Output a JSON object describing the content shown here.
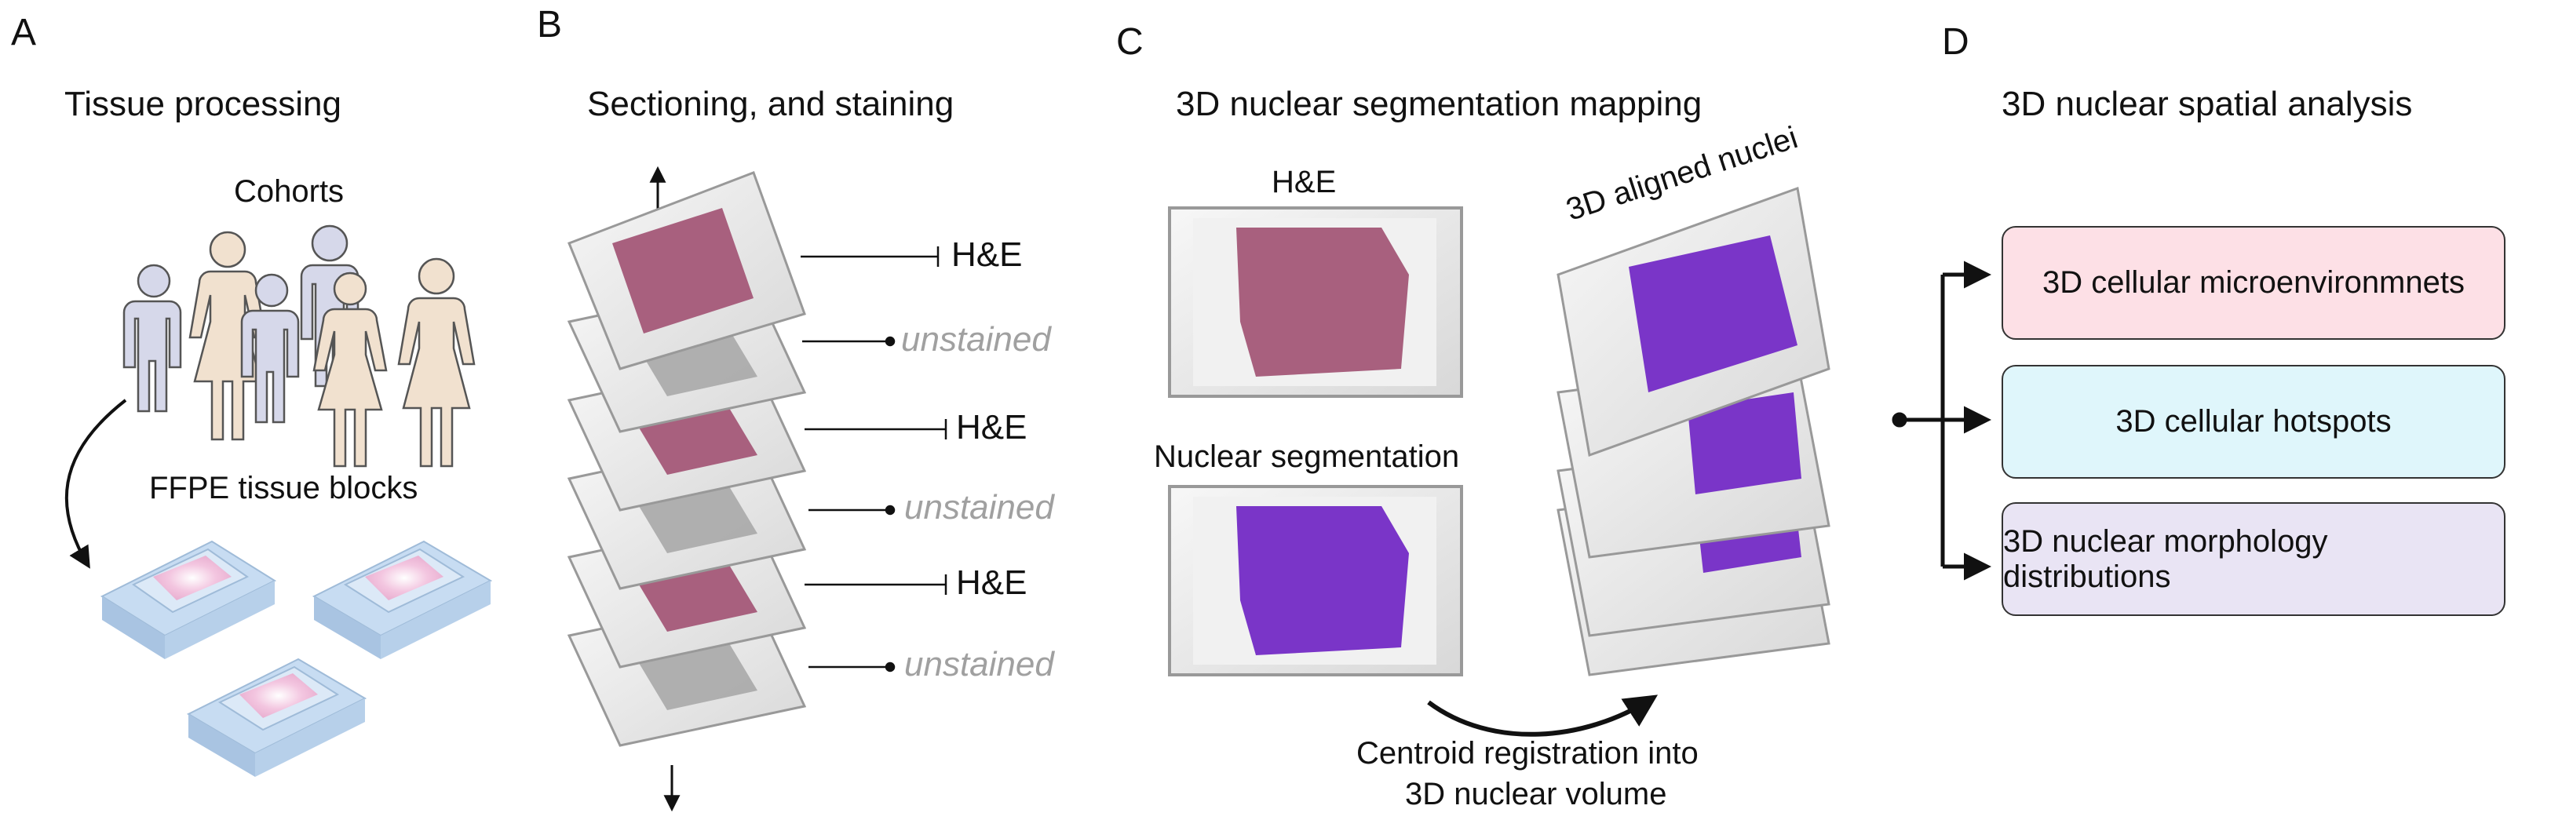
{
  "panels": {
    "a": {
      "letter": "A",
      "title": "Tissue processing",
      "cohorts_label": "Cohorts",
      "blocks_label": "FFPE tissue blocks"
    },
    "b": {
      "letter": "B",
      "title": "Sectioning, and staining",
      "stains": [
        "H&E",
        "unstained",
        "H&E",
        "unstained",
        "H&E",
        "unstained"
      ]
    },
    "c": {
      "letter": "C",
      "title": "3D nuclear segmentation mapping",
      "he_label": "H&E",
      "seg_label": "Nuclear segmentation",
      "aligned_label": "3D aligned nuclei",
      "caption_line1": "Centroid registration into",
      "caption_line2": "3D nuclear volume"
    },
    "d": {
      "letter": "D",
      "title": "3D nuclear spatial analysis",
      "boxes": [
        {
          "label": "3D cellular microenvironmnets",
          "color": "#fde0e6"
        },
        {
          "label": "3D cellular hotspots",
          "color": "#dff6fb"
        },
        {
          "label": "3D nuclear morphology distributions",
          "color": "#e9e4f4"
        }
      ]
    }
  },
  "colors": {
    "he_tissue": "#a8607e",
    "seg_tissue": "#7a35c8",
    "unstained_tissue": "#a8a8a8",
    "block": "#c7dcf2",
    "person_blue": "#d6d8ea",
    "person_tan": "#f1e1cf"
  }
}
